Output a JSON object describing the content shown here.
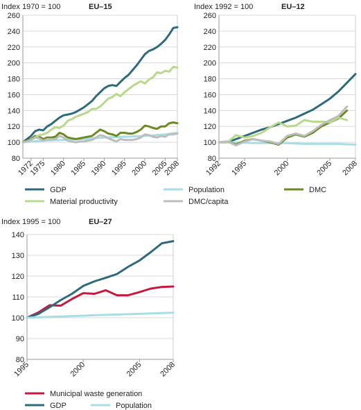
{
  "colors": {
    "gdp": "#2e6a7c",
    "population": "#a8dde5",
    "dmc": "#6b8a22",
    "material_productivity": "#b8d88c",
    "dmc_capita": "#bdbdbd",
    "municipal_waste": "#c7193f",
    "grid": "#d9d9d9"
  },
  "chart_data": [
    {
      "id": "eu15",
      "type": "line",
      "ylabel": "Index 1970 = 100",
      "title": "EU–15",
      "ylim": [
        80,
        260
      ],
      "yticks": [
        80,
        100,
        120,
        140,
        160,
        180,
        200,
        220,
        240,
        260
      ],
      "xlim": [
        1970,
        2008
      ],
      "xtick_labels": [
        "1972",
        "1975",
        "1980",
        "1985",
        "1990",
        "1995",
        "2000",
        "2005",
        "2008"
      ],
      "grid": true,
      "series": [
        {
          "key": "gdp",
          "name": "GDP",
          "color_key": "gdp",
          "x": [
            1970,
            1971,
            1972,
            1973,
            1974,
            1975,
            1976,
            1977,
            1978,
            1979,
            1980,
            1981,
            1982,
            1983,
            1984,
            1985,
            1986,
            1987,
            1988,
            1989,
            1990,
            1991,
            1992,
            1993,
            1994,
            1995,
            1996,
            1997,
            1998,
            1999,
            2000,
            2001,
            2002,
            2003,
            2004,
            2005,
            2006,
            2007,
            2008
          ],
          "y": [
            100,
            104,
            108,
            114,
            116,
            115,
            120,
            123,
            127,
            131,
            134,
            135,
            136,
            138,
            141,
            144,
            148,
            152,
            158,
            163,
            168,
            171,
            172,
            171,
            176,
            181,
            185,
            191,
            197,
            204,
            211,
            215,
            217,
            220,
            224,
            229,
            236,
            244,
            245
          ]
        },
        {
          "key": "population",
          "name": "Population",
          "color_key": "population",
          "x": [
            1970,
            1975,
            1980,
            1985,
            1990,
            1995,
            2000,
            2005,
            2008
          ],
          "y": [
            100,
            102,
            103,
            104,
            106,
            107,
            108,
            110,
            112
          ]
        },
        {
          "key": "dmc",
          "name": "DMC",
          "color_key": "dmc",
          "x": [
            1970,
            1971,
            1972,
            1973,
            1974,
            1975,
            1976,
            1977,
            1978,
            1979,
            1980,
            1981,
            1982,
            1983,
            1984,
            1985,
            1986,
            1987,
            1988,
            1989,
            1990,
            1991,
            1992,
            1993,
            1994,
            1995,
            1996,
            1997,
            1998,
            1999,
            2000,
            2001,
            2002,
            2003,
            2004,
            2005,
            2006,
            2007,
            2008
          ],
          "y": [
            100,
            102,
            104,
            108,
            107,
            104,
            106,
            106,
            107,
            112,
            110,
            106,
            105,
            104,
            105,
            106,
            107,
            108,
            112,
            116,
            114,
            111,
            110,
            108,
            112,
            112,
            111,
            111,
            113,
            116,
            121,
            120,
            118,
            117,
            120,
            120,
            124,
            125,
            124
          ]
        },
        {
          "key": "material_productivity",
          "name": "Material productivity",
          "color_key": "material_productivity",
          "x": [
            1970,
            1971,
            1972,
            1973,
            1974,
            1975,
            1976,
            1977,
            1978,
            1979,
            1980,
            1981,
            1982,
            1983,
            1984,
            1985,
            1986,
            1987,
            1988,
            1989,
            1990,
            1991,
            1992,
            1993,
            1994,
            1995,
            1996,
            1997,
            1998,
            1999,
            2000,
            2001,
            2002,
            2003,
            2004,
            2005,
            2006,
            2007,
            2008
          ],
          "y": [
            100,
            101,
            103,
            106,
            109,
            110,
            112,
            116,
            119,
            118,
            121,
            127,
            129,
            132,
            134,
            136,
            138,
            142,
            142,
            145,
            150,
            155,
            157,
            161,
            158,
            163,
            167,
            171,
            174,
            177,
            174,
            179,
            182,
            188,
            187,
            190,
            189,
            195,
            194
          ]
        },
        {
          "key": "dmc_capita",
          "name": "DMC/capita",
          "color_key": "dmc_capita",
          "x": [
            1970,
            1971,
            1972,
            1973,
            1974,
            1975,
            1976,
            1977,
            1978,
            1979,
            1980,
            1981,
            1982,
            1983,
            1984,
            1985,
            1986,
            1987,
            1988,
            1989,
            1990,
            1991,
            1992,
            1993,
            1994,
            1995,
            1996,
            1997,
            1998,
            1999,
            2000,
            2001,
            2002,
            2003,
            2004,
            2005,
            2006,
            2007,
            2008
          ],
          "y": [
            100,
            101,
            103,
            106,
            105,
            102,
            104,
            104,
            104,
            108,
            106,
            102,
            101,
            100,
            101,
            101,
            102,
            103,
            106,
            109,
            108,
            105,
            103,
            101,
            104,
            103,
            103,
            103,
            104,
            106,
            110,
            109,
            107,
            106,
            108,
            107,
            110,
            110,
            111
          ]
        }
      ]
    },
    {
      "id": "eu12",
      "type": "line",
      "ylabel": "Index 1992 = 100",
      "title": "EU–12",
      "ylim": [
        80,
        260
      ],
      "yticks": [
        80,
        100,
        120,
        140,
        160,
        180,
        200,
        220,
        240,
        260
      ],
      "xlim": [
        1992,
        2008
      ],
      "xtick_labels": [
        "1992",
        "1995",
        "2000",
        "2005",
        "2008"
      ],
      "grid": true,
      "series": [
        {
          "key": "gdp",
          "name": "GDP",
          "color_key": "gdp",
          "x": [
            1992,
            1993,
            1994,
            1995,
            1996,
            1997,
            1998,
            1999,
            2000,
            2001,
            2002,
            2003,
            2004,
            2005,
            2006,
            2007,
            2008
          ],
          "y": [
            100,
            100,
            104,
            108,
            112,
            116,
            119,
            123,
            127,
            131,
            136,
            141,
            148,
            155,
            164,
            175,
            186
          ]
        },
        {
          "key": "population",
          "name": "Population",
          "color_key": "population",
          "x": [
            1992,
            1994,
            1996,
            1998,
            2000,
            2002,
            2004,
            2006,
            2008
          ],
          "y": [
            100,
            100,
            99,
            99,
            99,
            98,
            98,
            98,
            97
          ]
        },
        {
          "key": "dmc",
          "name": "DMC",
          "color_key": "dmc",
          "x": [
            1992,
            1993,
            1994,
            1995,
            1996,
            1997,
            1998,
            1999,
            2000,
            2001,
            2002,
            2003,
            2004,
            2005,
            2006,
            2007
          ],
          "y": [
            100,
            101,
            97,
            102,
            104,
            102,
            100,
            97,
            106,
            110,
            107,
            112,
            120,
            125,
            130,
            140
          ]
        },
        {
          "key": "material_productivity",
          "name": "Material productivity",
          "color_key": "material_productivity",
          "x": [
            1992,
            1993,
            1994,
            1995,
            1996,
            1997,
            1998,
            1999,
            2000,
            2001,
            2002,
            2003,
            2004,
            2005,
            2006,
            2007
          ],
          "y": [
            100,
            100,
            109,
            106,
            108,
            112,
            119,
            125,
            120,
            121,
            128,
            126,
            126,
            125,
            131,
            128
          ]
        },
        {
          "key": "dmc_capita",
          "name": "DMC/capita",
          "color_key": "dmc_capita",
          "x": [
            1992,
            1993,
            1994,
            1995,
            1996,
            1997,
            1998,
            1999,
            2000,
            2001,
            2002,
            2003,
            2004,
            2005,
            2006,
            2007
          ],
          "y": [
            100,
            101,
            96,
            101,
            104,
            102,
            101,
            98,
            108,
            111,
            108,
            114,
            122,
            128,
            133,
            145
          ]
        }
      ]
    },
    {
      "id": "eu27",
      "type": "line",
      "ylabel": "Index 1995 = 100",
      "title": "EU–27",
      "ylim": [
        80,
        140
      ],
      "yticks": [
        80,
        90,
        100,
        110,
        120,
        130,
        140
      ],
      "xlim": [
        1995,
        2008
      ],
      "xtick_labels": [
        "1995",
        "2000",
        "2005",
        "2008"
      ],
      "grid": true,
      "series": [
        {
          "key": "municipal_waste",
          "name": "Municipal waste generation",
          "color_key": "municipal_waste",
          "x": [
            1995,
            1996,
            1997,
            1998,
            1999,
            2000,
            2001,
            2002,
            2003,
            2004,
            2005,
            2006,
            2007,
            2008
          ],
          "y": [
            100,
            102.5,
            106,
            105.8,
            109,
            111.8,
            111.5,
            113.2,
            110.8,
            110.8,
            112.3,
            114,
            114.8,
            115
          ]
        },
        {
          "key": "gdp",
          "name": "GDP",
          "color_key": "gdp",
          "x": [
            1995,
            1996,
            1997,
            1998,
            1999,
            2000,
            2001,
            2002,
            2003,
            2004,
            2005,
            2006,
            2007,
            2008
          ],
          "y": [
            100,
            101.8,
            105,
            108.5,
            111.5,
            115.3,
            117.5,
            119.2,
            121,
            124.5,
            127.5,
            131.5,
            135.8,
            136.8
          ]
        },
        {
          "key": "population",
          "name": "Population",
          "color_key": "population",
          "x": [
            1995,
            1998,
            2001,
            2004,
            2008
          ],
          "y": [
            100,
            100.6,
            101.2,
            101.7,
            102.4
          ]
        }
      ]
    }
  ],
  "legends": {
    "top": [
      {
        "label": "GDP",
        "color_key": "gdp"
      },
      {
        "label": "Population",
        "color_key": "population"
      },
      {
        "label": "DMC",
        "color_key": "dmc"
      },
      {
        "label": "Material productivity",
        "color_key": "material_productivity"
      },
      {
        "label": "DMC/capita",
        "color_key": "dmc_capita"
      }
    ],
    "bottom": [
      {
        "label": "Municipal waste generation",
        "color_key": "municipal_waste"
      },
      {
        "label": "GDP",
        "color_key": "gdp"
      },
      {
        "label": "Population",
        "color_key": "population"
      }
    ]
  }
}
